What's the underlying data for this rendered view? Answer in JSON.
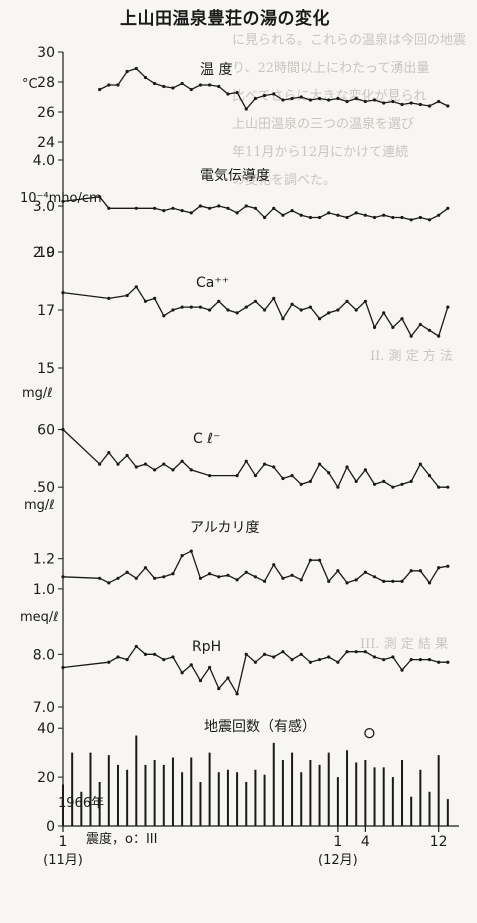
{
  "title": "上山田温泉豊荘の湯の変化",
  "date_start": "1966年",
  "note": "震度，o：III",
  "x_ticks": [
    {
      "label": "1",
      "sub": "(11月)",
      "day": 1
    },
    {
      "label": "1",
      "sub": "(12月)",
      "day": 31
    },
    {
      "label": "4",
      "day": 34
    },
    {
      "label": "12",
      "day": 42
    }
  ],
  "bleed_text": [
    "に見られる。これらの温泉は今回の地震",
    "り、22時間以上にわたって湧出量",
    "比べてさらに大きな変化が見られ",
    "上山田温泉の三つの温泉を選び",
    "年11月から12月にかけて連続",
    "の変化を調べた。"
  ],
  "bleed_text_lower": [
    "II. 測 定 方 法",
    "III. 測 定 結 果"
  ],
  "chart_data": [
    {
      "type": "line",
      "title": "温 度",
      "unit": "°C",
      "y_ticks": [
        30,
        28,
        26,
        24
      ],
      "ylim": [
        24,
        30
      ],
      "x": [
        5,
        6,
        7,
        8,
        9,
        10,
        11,
        12,
        13,
        14,
        15,
        16,
        17,
        18,
        19,
        20,
        21,
        22,
        23,
        24,
        25,
        26,
        27,
        28,
        29,
        30,
        31,
        32,
        33,
        34,
        35,
        36,
        37,
        38,
        39,
        40,
        41,
        42,
        43
      ],
      "values": [
        27.5,
        27.8,
        27.8,
        28.7,
        28.9,
        28.3,
        27.9,
        27.7,
        27.6,
        27.9,
        27.5,
        27.8,
        27.8,
        27.7,
        27.2,
        27.3,
        26.2,
        26.9,
        27.1,
        27.2,
        26.8,
        26.9,
        27.0,
        26.8,
        26.9,
        26.8,
        26.9,
        26.7,
        26.9,
        26.7,
        26.8,
        26.6,
        26.7,
        26.5,
        26.6,
        26.5,
        26.4,
        26.7,
        26.4
      ]
    },
    {
      "type": "line",
      "title": "電気伝導度",
      "unit": "10⁻⁴mho/cm",
      "y_ticks": [
        4.0,
        3.0,
        2.0
      ],
      "ylim": [
        2.0,
        4.0
      ],
      "x": [
        1,
        5,
        6,
        9,
        11,
        12,
        13,
        14,
        15,
        16,
        17,
        18,
        19,
        20,
        21,
        22,
        23,
        24,
        25,
        26,
        27,
        28,
        29,
        30,
        31,
        32,
        33,
        34,
        35,
        36,
        37,
        38,
        39,
        40,
        41,
        42,
        43
      ],
      "values": [
        3.1,
        3.2,
        2.95,
        2.95,
        2.95,
        2.9,
        2.95,
        2.9,
        2.85,
        3.0,
        2.95,
        3.0,
        2.95,
        2.85,
        3.0,
        2.95,
        2.75,
        2.95,
        2.8,
        2.9,
        2.8,
        2.75,
        2.75,
        2.85,
        2.8,
        2.75,
        2.85,
        2.8,
        2.75,
        2.8,
        2.75,
        2.75,
        2.7,
        2.75,
        2.7,
        2.8,
        2.95
      ]
    },
    {
      "type": "line",
      "title": "Ca⁺⁺",
      "unit": "mg/ℓ",
      "y_ticks": [
        19,
        17,
        15
      ],
      "ylim": [
        15,
        19
      ],
      "x": [
        1,
        6,
        8,
        9,
        10,
        11,
        12,
        13,
        14,
        15,
        16,
        17,
        18,
        19,
        20,
        21,
        22,
        23,
        24,
        25,
        26,
        27,
        28,
        29,
        30,
        31,
        32,
        33,
        34,
        35,
        36,
        37,
        38,
        39,
        40,
        41,
        42,
        43
      ],
      "values": [
        17.6,
        17.4,
        17.5,
        17.8,
        17.3,
        17.4,
        16.8,
        17.0,
        17.1,
        17.1,
        17.1,
        17.0,
        17.3,
        17.0,
        16.9,
        17.1,
        17.3,
        17.0,
        17.4,
        16.7,
        17.2,
        17.0,
        17.1,
        16.7,
        16.9,
        17.0,
        17.3,
        17.0,
        17.3,
        16.4,
        16.9,
        16.4,
        16.7,
        16.1,
        16.5,
        16.3,
        16.1,
        17.1
      ]
    },
    {
      "type": "line",
      "title": "C ℓ⁻",
      "unit": "mg/ℓ",
      "y_ticks": [
        60,
        50
      ],
      "ylim": [
        45,
        62
      ],
      "x": [
        1,
        5,
        6,
        7,
        8,
        9,
        10,
        11,
        12,
        13,
        14,
        15,
        17,
        20,
        21,
        22,
        23,
        24,
        25,
        26,
        27,
        28,
        29,
        30,
        31,
        32,
        33,
        34,
        35,
        36,
        37,
        38,
        39,
        40,
        41,
        42,
        43
      ],
      "values": [
        60,
        54,
        56,
        54,
        55.5,
        53.5,
        54,
        53,
        54,
        53,
        54.5,
        53,
        52,
        52,
        54.5,
        52,
        54,
        53.5,
        51.5,
        52,
        50.5,
        51,
        54,
        52.5,
        50,
        53.5,
        51,
        53,
        50.5,
        51,
        50,
        50.5,
        51,
        54,
        52,
        50,
        50
      ]
    },
    {
      "type": "line",
      "title": "アルカリ度",
      "unit": "meq/ℓ",
      "y_ticks": [
        1.2,
        1.0
      ],
      "ylim": [
        0.9,
        1.35
      ],
      "x": [
        1,
        5,
        6,
        7,
        8,
        9,
        10,
        11,
        12,
        13,
        14,
        15,
        16,
        17,
        18,
        19,
        20,
        21,
        22,
        23,
        24,
        25,
        26,
        27,
        28,
        29,
        30,
        31,
        32,
        33,
        34,
        35,
        36,
        37,
        38,
        39,
        40,
        41,
        42,
        43
      ],
      "values": [
        1.08,
        1.07,
        1.04,
        1.07,
        1.11,
        1.07,
        1.14,
        1.07,
        1.08,
        1.1,
        1.22,
        1.25,
        1.07,
        1.1,
        1.08,
        1.09,
        1.06,
        1.11,
        1.08,
        1.05,
        1.16,
        1.07,
        1.09,
        1.06,
        1.19,
        1.19,
        1.05,
        1.12,
        1.04,
        1.06,
        1.11,
        1.08,
        1.05,
        1.05,
        1.05,
        1.12,
        1.12,
        1.04,
        1.14,
        1.15
      ]
    },
    {
      "type": "line",
      "title": "RpH",
      "unit": "",
      "y_ticks": [
        8.0,
        7.0
      ],
      "ylim": [
        7.0,
        8.5
      ],
      "x": [
        1,
        6,
        7,
        8,
        9,
        10,
        11,
        12,
        13,
        14,
        15,
        16,
        17,
        18,
        19,
        20,
        21,
        22,
        23,
        24,
        25,
        26,
        27,
        28,
        29,
        30,
        31,
        32,
        33,
        34,
        35,
        36,
        37,
        38,
        39,
        40,
        41,
        42,
        43
      ],
      "values": [
        7.75,
        7.85,
        7.95,
        7.9,
        8.15,
        8.0,
        8.0,
        7.9,
        7.95,
        7.65,
        7.8,
        7.5,
        7.75,
        7.35,
        7.55,
        7.25,
        8.0,
        7.85,
        8.0,
        7.95,
        8.05,
        7.9,
        8.0,
        7.85,
        7.9,
        7.95,
        7.85,
        8.05,
        8.05,
        8.05,
        7.95,
        7.9,
        7.95,
        7.7,
        7.9,
        7.9,
        7.9,
        7.85,
        7.85
      ]
    },
    {
      "type": "bar",
      "title": "地震回数（有感）",
      "y_ticks": [
        40,
        20,
        0
      ],
      "ylim": [
        0,
        45
      ],
      "x": [
        1,
        2,
        3,
        4,
        5,
        6,
        7,
        8,
        9,
        10,
        11,
        12,
        13,
        14,
        15,
        16,
        17,
        18,
        19,
        20,
        21,
        22,
        23,
        24,
        25,
        26,
        27,
        28,
        29,
        30,
        31,
        32,
        33,
        34,
        35,
        36,
        37,
        38,
        39,
        40,
        41,
        42,
        43
      ],
      "values": [
        17,
        30,
        14,
        30,
        18,
        29,
        25,
        23,
        37,
        25,
        27,
        25,
        28,
        22,
        28,
        18,
        30,
        22,
        23,
        22,
        18,
        23,
        21,
        34,
        27,
        30,
        22,
        27,
        25,
        30,
        20,
        31,
        26,
        27,
        24,
        24,
        20,
        27,
        12,
        23,
        14,
        29,
        11
      ],
      "markers": [
        {
          "x": 34,
          "y": 38
        }
      ]
    }
  ]
}
